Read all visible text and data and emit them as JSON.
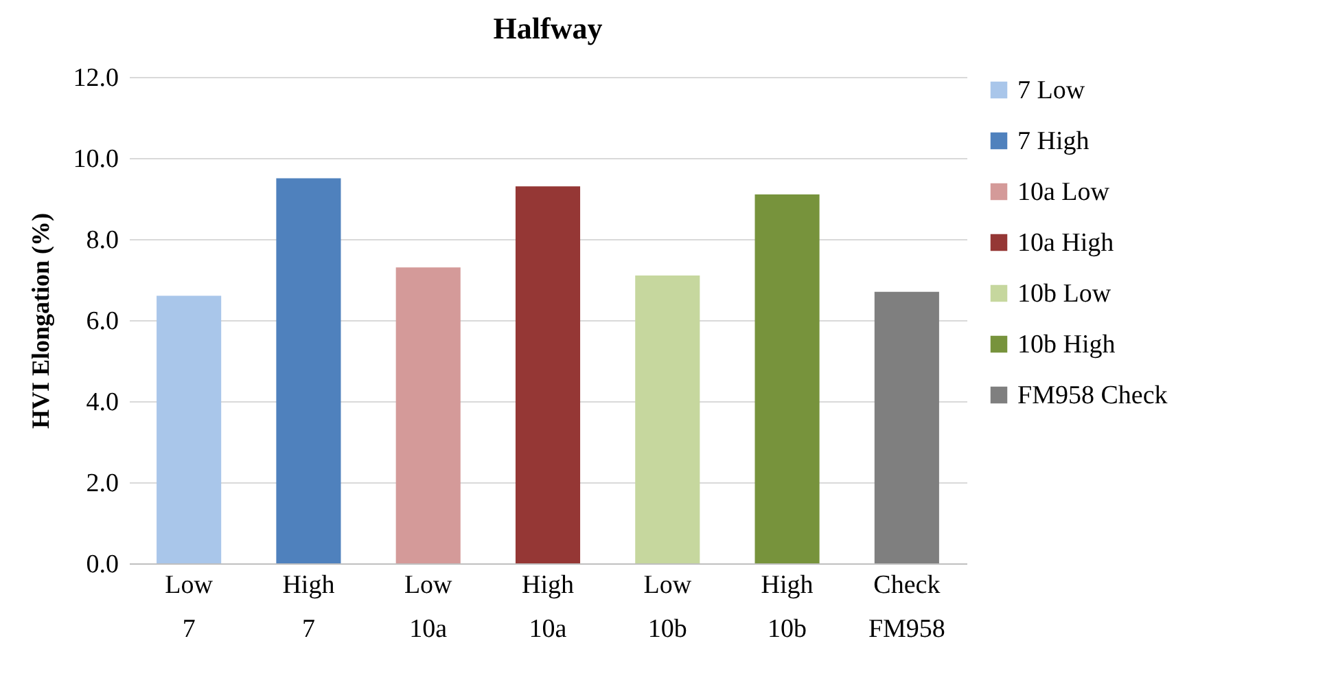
{
  "chart_data": {
    "type": "bar",
    "title": "Halfway",
    "ylabel": "HVI Elongation (%)",
    "categories": [
      "Low\n7",
      "High\n7",
      "Low\n10a",
      "High\n10a",
      "Low\n10b",
      "High\n10b",
      "Check\nFM958"
    ],
    "series": [
      {
        "name": "7 Low",
        "color": "#a9c6ea",
        "values": [
          6.6,
          null,
          null,
          null,
          null,
          null,
          null
        ]
      },
      {
        "name": "7 High",
        "color": "#4f81bd",
        "values": [
          null,
          9.5,
          null,
          null,
          null,
          null,
          null
        ]
      },
      {
        "name": "10a Low",
        "color": "#d49a99",
        "values": [
          null,
          null,
          7.3,
          null,
          null,
          null,
          null
        ]
      },
      {
        "name": "10a High",
        "color": "#953735",
        "values": [
          null,
          null,
          null,
          9.3,
          null,
          null,
          null
        ]
      },
      {
        "name": "10b Low",
        "color": "#c6d79e",
        "values": [
          null,
          null,
          null,
          null,
          7.1,
          null,
          null
        ]
      },
      {
        "name": "10b High",
        "color": "#77933c",
        "values": [
          null,
          null,
          null,
          null,
          null,
          9.1,
          null
        ]
      },
      {
        "name": "FM958 Check",
        "color": "#7f7f7f",
        "values": [
          null,
          null,
          null,
          null,
          null,
          null,
          6.7
        ]
      }
    ],
    "ylim": [
      0,
      12
    ],
    "yticks": [
      {
        "value": 0,
        "label": "0.0"
      },
      {
        "value": 2,
        "label": "2.0"
      },
      {
        "value": 4,
        "label": "4.0"
      },
      {
        "value": 6,
        "label": "6.0"
      },
      {
        "value": 8,
        "label": "8.0"
      },
      {
        "value": 10,
        "label": "10.0"
      },
      {
        "value": 12,
        "label": "12.0"
      }
    ],
    "grid": "y",
    "legend": "right"
  }
}
